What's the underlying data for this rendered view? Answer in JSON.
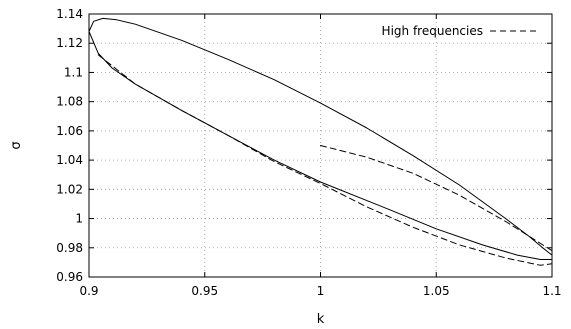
{
  "chart_data": {
    "type": "line",
    "xlabel": "k",
    "ylabel": "σ",
    "xlim": [
      0.9,
      1.1
    ],
    "ylim": [
      0.96,
      1.14
    ],
    "xticks": [
      "0.9",
      "0.95",
      "1",
      "1.05",
      "1.1"
    ],
    "yticks": [
      "0.96",
      "0.98",
      "1",
      "1.02",
      "1.04",
      "1.06",
      "1.08",
      "1.1",
      "1.12",
      "1.14"
    ],
    "grid": true,
    "legend_position": "top-right",
    "series": [
      {
        "style": "solid",
        "color": "#000000",
        "x": [
          0.9,
          0.902,
          0.906,
          0.912,
          0.92,
          0.94,
          0.96,
          0.98,
          1.0,
          1.02,
          1.04,
          1.06,
          1.08,
          1.09,
          1.096,
          1.1,
          1.1,
          1.095,
          1.085,
          1.07,
          1.05,
          1.03,
          1.0,
          0.98,
          0.96,
          0.94,
          0.92,
          0.91,
          0.904,
          0.9
        ],
        "y": [
          1.128,
          1.135,
          1.137,
          1.136,
          1.133,
          1.122,
          1.109,
          1.095,
          1.079,
          1.062,
          1.043,
          1.023,
          1.0,
          0.988,
          0.98,
          0.975,
          0.972,
          0.972,
          0.975,
          0.982,
          0.993,
          1.006,
          1.025,
          1.04,
          1.057,
          1.074,
          1.092,
          1.103,
          1.113,
          1.128
        ]
      },
      {
        "name": "High frequencies",
        "style": "dashed",
        "color": "#000000",
        "x": [
          0.904,
          0.92,
          0.94,
          0.96,
          0.98,
          1.0,
          1.02,
          1.04,
          1.06,
          1.08,
          1.095,
          1.1
        ],
        "y": [
          1.112,
          1.092,
          1.074,
          1.057,
          1.039,
          1.024,
          1.008,
          0.994,
          0.982,
          0.973,
          0.968,
          0.969
        ]
      },
      {
        "style": "dashed",
        "color": "#000000",
        "x": [
          1.0,
          1.02,
          1.04,
          1.06,
          1.08,
          1.1
        ],
        "y": [
          1.05,
          1.042,
          1.031,
          1.016,
          0.998,
          0.978
        ]
      }
    ]
  }
}
